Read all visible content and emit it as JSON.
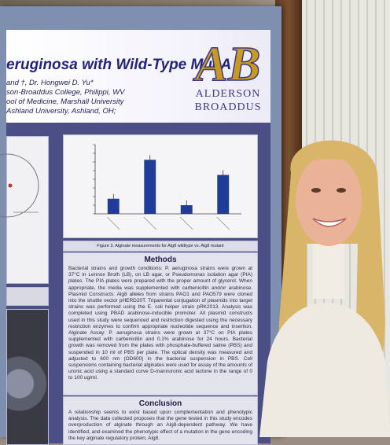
{
  "poster": {
    "title": "eruginosa with Wild-Type MucA",
    "authors": [
      "and †, Dr. Hongwei D. Yu*",
      "son-Broaddus College, Philippi, WV",
      "ool of Medicine, Marshall University",
      "Ashland University, Ashland, OH;"
    ],
    "logo_letters": "AB",
    "logo_line1": "ALDERSON",
    "logo_line2": "BROADDUS",
    "figure_caption": "Figure 3. Alginate measurements for Alg8 wildtype vs. Alg8 mutant",
    "methods_heading": "Methods",
    "methods_text": "Bacterial strains and growth conditions: P. aeruginosa strains were grown at 37°C in Lennox Broth (LB), on LB agar, or Pseudomonas isolation agar (PIA) plates. The PIA plates were prepared with the proper amount of glycerol. When appropriate, the media was supplemented with carbenicillin and/or arabinose. Plasmid Constructs: Alg8 alleles from strains PAO1 and PAO579 were cloned into the shuttle vector pHERD20T. Triparental conjugation of plasmids into target strains was performed using the E. coli helper strain pRK2013. Analysis was completed using PBAD arabinose-inducible promoter. All plasmid constructs used in this study were sequenced and restriction digested using the necessary restriction enzymes to confirm appropriate nucleotide sequence and insertion. Alginate Assay: P. aeruginosa strains were grown at 37°C on PIA plates supplemented with carbenicillin and 0.1% arabinose for 24 hours. Bacterial growth was removed from the plates with phosphate-buffered saline (PBS) and suspended in 10 ml of PBS per plate. The optical density was measured and adjusted to 600 nm (OD600) in the bacterial suspension in PBS. Cell suspensions containing bacterial alginates were used for assay of the amounts of uronic acid using a standard curve D-mannuronic acid lactone in the range of 0 to 100 ug/ml.",
    "conclusion_heading": "Conclusion",
    "conclusion_text": "A relationship seems to exist based upon complementation and phenotypic analysis. The data collected proposes that the gene tested in this study encodes overproduction of alginate through an Alg8-dependent pathway. We have identified, and examined the phenotypic effect of a mutation in the gene encoding the key alginate regulatory protein, Alg8."
  },
  "chart_data": {
    "type": "bar",
    "categories": [
      "",
      "",
      "",
      ""
    ],
    "values": [
      0.35,
      1.25,
      0.2,
      0.9
    ],
    "ylim": [
      0,
      1.6
    ],
    "bar_color": "#1f3c99"
  }
}
